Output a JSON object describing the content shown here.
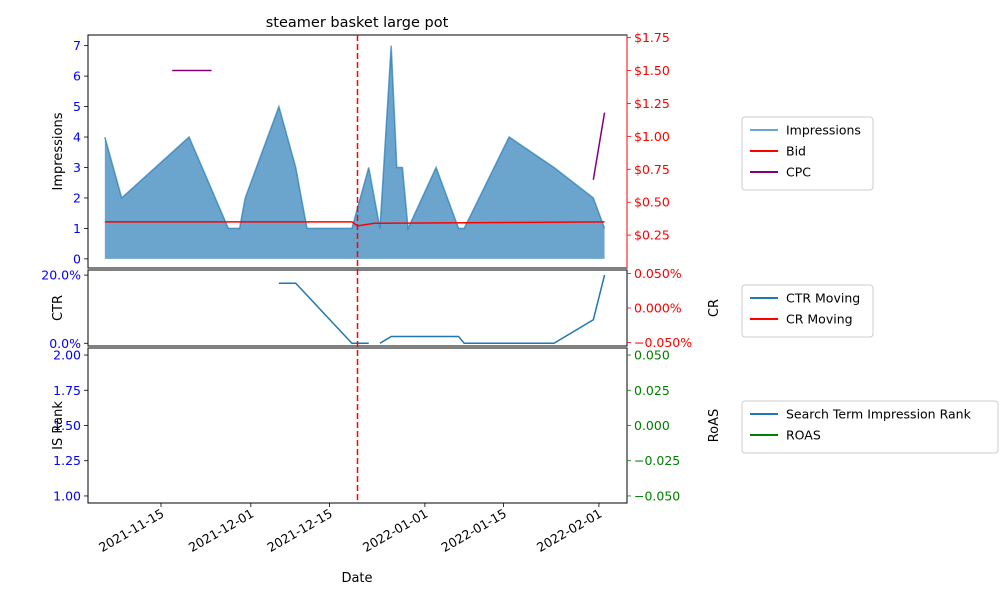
{
  "chart_data": {
    "type": "area",
    "title": "steamer basket large pot",
    "xlabel": "Date",
    "x_ticks": [
      "2021-11-15",
      "2021-12-01",
      "2021-12-15",
      "2022-01-01",
      "2022-01-15",
      "2022-02-01"
    ],
    "x_range": [
      "2021-11-02",
      "2022-02-06"
    ],
    "event_line": {
      "date": "2021-12-20",
      "color": "#ff0000",
      "style": "dashed"
    },
    "panels": [
      {
        "id": "top",
        "ylabel_left": "Impressions",
        "ylim_left": [
          -0.3,
          7.35
        ],
        "yticks_left": [
          {
            "v": 0,
            "t": "0"
          },
          {
            "v": 1,
            "t": "1"
          },
          {
            "v": 2,
            "t": "2"
          },
          {
            "v": 3,
            "t": "3"
          },
          {
            "v": 4,
            "t": "4"
          },
          {
            "v": 5,
            "t": "5"
          },
          {
            "v": 6,
            "t": "6"
          },
          {
            "v": 7,
            "t": "7"
          }
        ],
        "ylim_right": [
          0.0,
          1.77
        ],
        "yticks_right": [
          {
            "v": 0.25,
            "t": "$0.25"
          },
          {
            "v": 0.5,
            "t": "$0.50"
          },
          {
            "v": 0.75,
            "t": "$0.75"
          },
          {
            "v": 1.0,
            "t": "$1.00"
          },
          {
            "v": 1.25,
            "t": "$1.25"
          },
          {
            "v": 1.5,
            "t": "$1.50"
          },
          {
            "v": 1.75,
            "t": "$1.75"
          }
        ],
        "left_tick_color": "#0000ff",
        "right_tick_color": "#ff0000",
        "legend": [
          "Impressions",
          "Bid",
          "CPC"
        ],
        "series": [
          {
            "name": "Impressions",
            "kind": "area",
            "axis": "left",
            "color": "#1f77b4",
            "points": [
              [
                "2021-11-05",
                4
              ],
              [
                "2021-11-08",
                2
              ],
              [
                "2021-11-20",
                4
              ],
              [
                "2021-11-27",
                1
              ],
              [
                "2021-11-29",
                1
              ],
              [
                "2021-11-30",
                2
              ],
              [
                "2021-12-06",
                5
              ],
              [
                "2021-12-09",
                3
              ],
              [
                "2021-12-11",
                1
              ],
              [
                "2021-12-19",
                1
              ],
              [
                "2021-12-22",
                3
              ],
              [
                "2021-12-24",
                1
              ],
              [
                "2021-12-26",
                7
              ],
              [
                "2021-12-27",
                3
              ],
              [
                "2021-12-28",
                3
              ],
              [
                "2021-12-29",
                1
              ],
              [
                "2022-01-03",
                3
              ],
              [
                "2022-01-07",
                1
              ],
              [
                "2022-01-08",
                1
              ],
              [
                "2022-01-16",
                4
              ],
              [
                "2022-01-24",
                3
              ],
              [
                "2022-01-31",
                2
              ],
              [
                "2022-02-02",
                1
              ]
            ]
          },
          {
            "name": "Bid",
            "kind": "line",
            "axis": "right",
            "color": "#ff0000",
            "points": [
              [
                "2021-11-05",
                0.35
              ],
              [
                "2021-12-19",
                0.35
              ],
              [
                "2021-12-20",
                0.32
              ],
              [
                "2021-12-23",
                0.34
              ],
              [
                "2022-02-02",
                0.35
              ]
            ]
          },
          {
            "name": "CPC",
            "kind": "line",
            "axis": "right",
            "color": "#800080",
            "segments": [
              [
                [
                  "2021-11-17",
                  1.5
                ],
                [
                  "2021-11-24",
                  1.5
                ]
              ],
              [
                [
                  "2022-01-31",
                  0.67
                ],
                [
                  "2022-02-02",
                  1.18
                ]
              ]
            ]
          }
        ]
      },
      {
        "id": "middle",
        "ylabel_left": "CTR",
        "ylabel_right": "CR",
        "ylim_left": [
          -0.008,
          0.215
        ],
        "yticks_left": [
          {
            "v": 0.0,
            "t": "0.0%"
          },
          {
            "v": 0.2,
            "t": "20.0%"
          }
        ],
        "ylim_right": [
          -0.055,
          0.055
        ],
        "yticks_right": [
          {
            "v": -0.05,
            "t": "−0.050%"
          },
          {
            "v": 0.0,
            "t": "0.000%"
          },
          {
            "v": 0.05,
            "t": "0.050%"
          }
        ],
        "left_tick_color": "#0000ff",
        "right_tick_color": "#ff0000",
        "legend": [
          "CTR Moving",
          "CR Moving"
        ],
        "series": [
          {
            "name": "CTR Moving",
            "kind": "line",
            "axis": "left",
            "color": "#1f77b4",
            "segments": [
              [
                [
                  "2021-12-06",
                  0.176
                ],
                [
                  "2021-12-09",
                  0.176
                ],
                [
                  "2021-12-11",
                  0.141
                ],
                [
                  "2021-12-19",
                  0.0
                ],
                [
                  "2021-12-22",
                  0.0
                ]
              ],
              [
                [
                  "2021-12-24",
                  0.0
                ],
                [
                  "2021-12-26",
                  0.02
                ],
                [
                  "2022-01-07",
                  0.02
                ],
                [
                  "2022-01-08",
                  0.0
                ],
                [
                  "2022-01-24",
                  0.0
                ],
                [
                  "2022-01-31",
                  0.069
                ],
                [
                  "2022-02-02",
                  0.2
                ]
              ]
            ]
          },
          {
            "name": "CR Moving",
            "kind": "line",
            "axis": "right",
            "color": "#ff0000",
            "segments": []
          }
        ]
      },
      {
        "id": "bottom",
        "ylabel_left": "IS Rank",
        "ylabel_right": "RoAS",
        "ylim_left": [
          0.95,
          2.05
        ],
        "yticks_left": [
          {
            "v": 1.0,
            "t": "1.00"
          },
          {
            "v": 1.25,
            "t": "1.25"
          },
          {
            "v": 1.5,
            "t": "1.50"
          },
          {
            "v": 1.75,
            "t": "1.75"
          },
          {
            "v": 2.0,
            "t": "2.00"
          }
        ],
        "ylim_right": [
          -0.055,
          0.055
        ],
        "yticks_right": [
          {
            "v": -0.05,
            "t": "−0.050"
          },
          {
            "v": -0.025,
            "t": "−0.025"
          },
          {
            "v": 0.0,
            "t": "0.000"
          },
          {
            "v": 0.025,
            "t": "0.025"
          },
          {
            "v": 0.05,
            "t": "0.050"
          }
        ],
        "left_tick_color": "#0000ff",
        "right_tick_color": "#008000",
        "legend": [
          "Search Term Impression Rank",
          "ROAS"
        ],
        "series": [
          {
            "name": "Search Term Impression Rank",
            "kind": "line",
            "axis": "left",
            "color": "#1f77b4",
            "segments": []
          },
          {
            "name": "ROAS",
            "kind": "line",
            "axis": "right",
            "color": "#008000",
            "segments": []
          }
        ]
      }
    ]
  }
}
